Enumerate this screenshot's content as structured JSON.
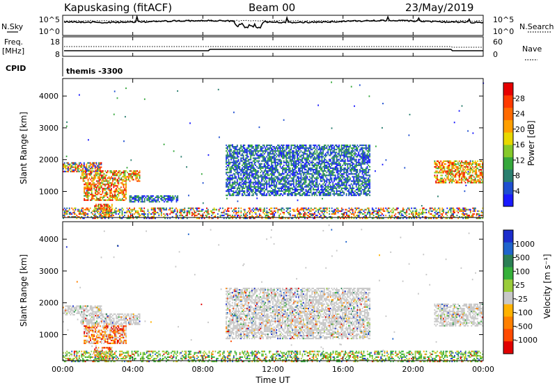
{
  "header": {
    "station": "Kapuskasing (fitACF)",
    "beam": "Beam 00",
    "date": "23/May/2019"
  },
  "left_labels": {
    "nsky": "N.Sky",
    "freq": "Freq.",
    "freq_unit": "[MHz]",
    "cpid": "CPID"
  },
  "right_labels": {
    "nsearch": "N.Search",
    "nave": "Nave"
  },
  "cpid_value": "themis -3300",
  "noise_panel": {
    "left_ticks": [
      "10^5",
      "10^0"
    ],
    "right_ticks": [
      "10^5",
      "10^0"
    ]
  },
  "freq_panel": {
    "left_ticks": [
      "18",
      "8"
    ],
    "right_ticks": [
      "60",
      "0"
    ]
  },
  "chart_data": [
    {
      "type": "heatmap",
      "title": "",
      "xlabel": "",
      "ylabel": "Slant Range [km]",
      "xlim": [
        0,
        24
      ],
      "ylim": [
        180,
        4550
      ],
      "x_ticks": [
        "00:00",
        "04:00",
        "08:00",
        "12:00",
        "16:00",
        "20:00",
        "00:00"
      ],
      "y_ticks": [
        "1000",
        "2000",
        "3000",
        "4000"
      ],
      "colorbar": {
        "label": "Power [dB]",
        "ticks": [
          "4",
          "8",
          "12",
          "16",
          "20",
          "24",
          "28"
        ],
        "colors": [
          "#1a1aff",
          "#1f4fd0",
          "#2a7f6f",
          "#36a83c",
          "#86c92a",
          "#e8d800",
          "#ff9f00",
          "#ff6a00",
          "#ff3a00",
          "#e60000"
        ]
      },
      "regions": [
        {
          "t": [
            0.0,
            2.2
          ],
          "r": [
            1650,
            1950
          ],
          "level": "mixed"
        },
        {
          "t": [
            1.0,
            4.4
          ],
          "r": [
            1350,
            1700
          ],
          "level": "high"
        },
        {
          "t": [
            1.2,
            3.6
          ],
          "r": [
            750,
            1300
          ],
          "level": "high"
        },
        {
          "t": [
            1.8,
            2.8
          ],
          "r": [
            250,
            650
          ],
          "level": "high"
        },
        {
          "t": [
            3.8,
            6.6
          ],
          "r": [
            700,
            900
          ],
          "level": "low"
        },
        {
          "t": [
            9.3,
            17.5
          ],
          "r": [
            900,
            2500
          ],
          "level": "low"
        },
        {
          "t": [
            21.2,
            24.0
          ],
          "r": [
            1300,
            2000
          ],
          "level": "high"
        },
        {
          "t": [
            0.0,
            24.0
          ],
          "r": [
            180,
            520
          ],
          "level": "mixed"
        }
      ]
    },
    {
      "type": "heatmap",
      "title": "",
      "xlabel": "Time UT",
      "ylabel": "Slant Range [km]",
      "xlim": [
        0,
        24
      ],
      "ylim": [
        180,
        4550
      ],
      "x_ticks": [
        "00:00",
        "04:00",
        "08:00",
        "12:00",
        "16:00",
        "20:00",
        "00:00"
      ],
      "y_ticks": [
        "1000",
        "2000",
        "3000",
        "4000"
      ],
      "colorbar": {
        "label": "Velocity [m s⁻¹]",
        "ticks": [
          "1000",
          "500",
          "100",
          "25",
          "-25",
          "-100",
          "-500",
          "-1000"
        ],
        "colors": [
          "#1c2dcc",
          "#1f64cc",
          "#2b7f55",
          "#36b03a",
          "#9acc3a",
          "#c8c8c8",
          "#ffb200",
          "#ff8000",
          "#ff4a00",
          "#e00000"
        ]
      },
      "regions": [
        {
          "t": [
            0.0,
            2.2
          ],
          "r": [
            1650,
            1950
          ],
          "v": "ground"
        },
        {
          "t": [
            1.0,
            4.4
          ],
          "r": [
            1350,
            1700
          ],
          "v": "ground"
        },
        {
          "t": [
            1.2,
            3.6
          ],
          "r": [
            750,
            1300
          ],
          "v": "negative"
        },
        {
          "t": [
            1.8,
            2.8
          ],
          "r": [
            250,
            650
          ],
          "v": "negative"
        },
        {
          "t": [
            9.3,
            17.5
          ],
          "r": [
            900,
            2500
          ],
          "v": "ground"
        },
        {
          "t": [
            21.2,
            24.0
          ],
          "r": [
            1300,
            2000
          ],
          "v": "ground"
        },
        {
          "t": [
            0.0,
            24.0
          ],
          "r": [
            180,
            520
          ],
          "v": "positive"
        }
      ]
    }
  ]
}
